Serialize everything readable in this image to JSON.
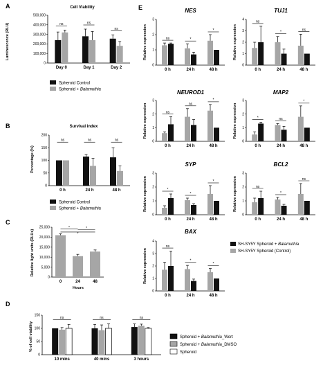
{
  "colors": {
    "black": "#111111",
    "gray": "#a6a6a6",
    "white": "#ffffff"
  },
  "chart_data": [
    {
      "panel": "A",
      "type": "bar",
      "title": "Cell Viability",
      "ylabel": "Luminescence (RLU)",
      "ylim": [
        0,
        500000
      ],
      "yticks": [
        "0",
        "100,000",
        "200,000",
        "300,000",
        "400,000",
        "500,000"
      ],
      "categories": [
        "Day 0",
        "Day 1",
        "Day 2"
      ],
      "series": [
        {
          "name": "Spheroid Control",
          "color": "#111111",
          "values": [
            240000,
            280000,
            255000
          ],
          "errors": [
            85000,
            75000,
            40000
          ]
        },
        {
          "name": "Spheroid + Balamuthia",
          "color": "#a6a6a6",
          "values": [
            320000,
            240000,
            180000
          ],
          "errors": [
            25000,
            90000,
            45000
          ]
        }
      ],
      "annotations": [
        "ns",
        "ns",
        "ns"
      ]
    },
    {
      "panel": "B",
      "type": "bar",
      "title": "Survival index",
      "ylabel": "Percentage (%)",
      "ylim": [
        0,
        200
      ],
      "yticks": [
        "0",
        "50",
        "100",
        "150",
        "200"
      ],
      "categories": [
        "0 h",
        "24 h",
        "48 h"
      ],
      "series": [
        {
          "name": "Spheroid Control",
          "color": "#111111",
          "values": [
            100,
            115,
            112
          ],
          "errors": [
            0,
            8,
            38
          ]
        },
        {
          "name": "Spheroid + Balamuthia",
          "color": "#a6a6a6",
          "values": [
            100,
            78,
            58
          ],
          "errors": [
            0,
            30,
            20
          ]
        }
      ],
      "annotations": [
        "ns",
        "ns",
        "ns"
      ]
    },
    {
      "panel": "C",
      "type": "bar",
      "title": "",
      "ylabel": "Relative light units (RLUs)",
      "xlabel": "Hours",
      "ylim": [
        0,
        25000
      ],
      "yticks": [
        "0",
        "5,000",
        "10,000",
        "15,000",
        "20,000",
        "25,000"
      ],
      "categories": [
        "0",
        "24",
        "48"
      ],
      "series": [
        {
          "name": "",
          "color": "#a6a6a6",
          "values": [
            21000,
            10500,
            12800
          ],
          "errors": [
            700,
            900,
            800
          ]
        }
      ],
      "annotations": [
        "*",
        "*",
        "*"
      ]
    },
    {
      "panel": "D",
      "type": "bar",
      "title": "",
      "ylabel": "% of cell viability",
      "ylim": [
        0,
        150
      ],
      "yticks": [
        "0",
        "50",
        "100",
        "150"
      ],
      "categories": [
        "10 mins",
        "40 mins",
        "3 hours"
      ],
      "series": [
        {
          "name": "Spheroid + Balamuthia_Wort",
          "color": "#111111",
          "values": [
            100,
            100,
            105
          ],
          "errors": [
            0,
            15,
            12
          ]
        },
        {
          "name": "Spheroid + Balamuthia_DMSO",
          "color": "#a6a6a6",
          "values": [
            95,
            93,
            110
          ],
          "errors": [
            8,
            20,
            6
          ]
        },
        {
          "name": "Spheroid",
          "color": "#ffffff",
          "values": [
            100,
            100,
            100
          ],
          "errors": [
            15,
            17,
            3
          ]
        }
      ],
      "annotations": [
        "ns",
        "ns",
        "ns"
      ]
    },
    {
      "panel": "E",
      "type": "bar",
      "ylabel": "Relative expression",
      "categories": [
        "0 h",
        "24 h",
        "48 h"
      ],
      "legend": [
        "SH-SY5Y Spheroid + Balamuthia",
        "SH-SY5Y Spheroid (Control)"
      ],
      "genes": [
        {
          "name": "NES",
          "ylim": [
            0,
            3
          ],
          "yticks": [
            "0",
            "1",
            "2",
            "3"
          ],
          "control": [
            1.3,
            1.1,
            1.6
          ],
          "control_err": [
            0.15,
            0.3,
            0.4
          ],
          "infected": [
            1.4,
            0.7,
            1.0
          ],
          "infected_err": [
            0.05,
            0.15,
            0.0
          ],
          "annotations": [
            "ns",
            "*",
            "*"
          ]
        },
        {
          "name": "TUJ1",
          "ylim": [
            0,
            4
          ],
          "yticks": [
            "0",
            "1",
            "2",
            "3",
            "4"
          ],
          "control": [
            1.5,
            2.0,
            1.7
          ],
          "control_err": [
            0.5,
            0.5,
            1.0
          ],
          "infected": [
            2.0,
            1.0,
            1.0
          ],
          "infected_err": [
            1.4,
            0.4,
            0.0
          ],
          "annotations": [
            "ns",
            "*",
            "ns"
          ]
        },
        {
          "name": "NEUROD1",
          "ylim": [
            0,
            3
          ],
          "yticks": [
            "0",
            "1",
            "2",
            "3"
          ],
          "control": [
            0.6,
            1.8,
            2.25
          ],
          "control_err": [
            0.1,
            0.6,
            0.45
          ],
          "infected": [
            1.25,
            1.2,
            1.0
          ],
          "infected_err": [
            0.55,
            0.4,
            0.0
          ],
          "annotations": [
            "ns",
            "ns",
            "*"
          ]
        },
        {
          "name": "MAP2",
          "ylim": [
            0,
            3
          ],
          "yticks": [
            "0",
            "1",
            "2",
            "3"
          ],
          "control": [
            0.5,
            1.2,
            1.8
          ],
          "control_err": [
            0.2,
            0.1,
            0.8
          ],
          "infected": [
            1.3,
            0.85,
            1.0
          ],
          "infected_err": [
            0.1,
            0.25,
            0.0
          ],
          "annotations": [
            "*",
            "ns",
            "*"
          ]
        },
        {
          "name": "SYP",
          "ylim": [
            0,
            3
          ],
          "yticks": [
            "0",
            "1",
            "2",
            "3"
          ],
          "control": [
            0.5,
            1.05,
            1.5
          ],
          "control_err": [
            0.15,
            0.15,
            0.6
          ],
          "infected": [
            1.2,
            0.7,
            1.0
          ],
          "infected_err": [
            0.3,
            0.1,
            0.0
          ],
          "annotations": [
            "*",
            "*",
            "*"
          ]
        },
        {
          "name": "BCL2",
          "ylim": [
            0,
            3
          ],
          "yticks": [
            "0",
            "1",
            "2",
            "3"
          ],
          "control": [
            0.9,
            1.1,
            1.5
          ],
          "control_err": [
            0.3,
            0.15,
            0.75
          ],
          "infected": [
            1.2,
            0.65,
            1.0
          ],
          "infected_err": [
            0.5,
            0.1,
            0.0
          ],
          "annotations": [
            "ns",
            "*",
            "ns"
          ]
        },
        {
          "name": "BAX",
          "ylim": [
            0,
            4
          ],
          "yticks": [
            "0",
            "1",
            "2",
            "3",
            "4"
          ],
          "control": [
            1.7,
            1.75,
            1.5
          ],
          "control_err": [
            0.6,
            0.3,
            0.3
          ],
          "infected": [
            2.0,
            0.8,
            1.0
          ],
          "infected_err": [
            1.2,
            0.15,
            0.0
          ],
          "annotations": [
            "ns",
            "*",
            "*"
          ]
        }
      ]
    }
  ]
}
